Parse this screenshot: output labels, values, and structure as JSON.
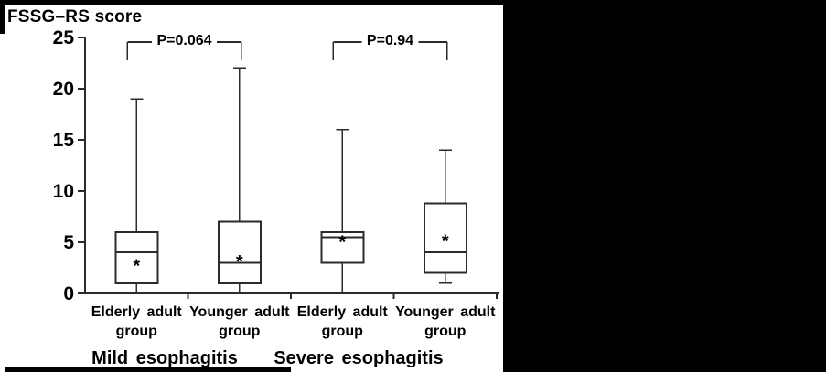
{
  "colors": {
    "line": "#2b2b2b",
    "text": "#000000",
    "background": "#ffffff",
    "mask": "#000000"
  },
  "mean_marker": "*",
  "chart_data": {
    "type": "box",
    "title": "FSSG–RS score",
    "ylabel": "FSSG–RS score",
    "xlabel": "",
    "ylim": [
      0,
      25
    ],
    "yticks": [
      0,
      5,
      10,
      15,
      20,
      25
    ],
    "grid": false,
    "legend": "none",
    "groups": [
      {
        "label": "Mild esophagitis",
        "p_label": "P=0.064",
        "boxes": [
          {
            "label_lines": [
              "Elderly adult",
              "group"
            ],
            "min": 0,
            "q1": 1,
            "median": 4,
            "q3": 6,
            "max": 19,
            "mean": 3.0
          },
          {
            "label_lines": [
              "Younger adult",
              "group"
            ],
            "min": 0,
            "q1": 1,
            "median": 3,
            "q3": 7,
            "max": 22,
            "mean": 3.4
          }
        ]
      },
      {
        "label": "Severe esophagitis",
        "p_label": "P=0.94",
        "boxes": [
          {
            "label_lines": [
              "Elderly adult",
              "group"
            ],
            "min": 0,
            "q1": 3,
            "median": 5.5,
            "q3": 6,
            "max": 16,
            "mean": 5.3
          },
          {
            "label_lines": [
              "Younger adult",
              "group"
            ],
            "min": 1,
            "q1": 2,
            "median": 4,
            "q3": 8.8,
            "max": 14,
            "mean": 5.4
          }
        ]
      }
    ]
  }
}
